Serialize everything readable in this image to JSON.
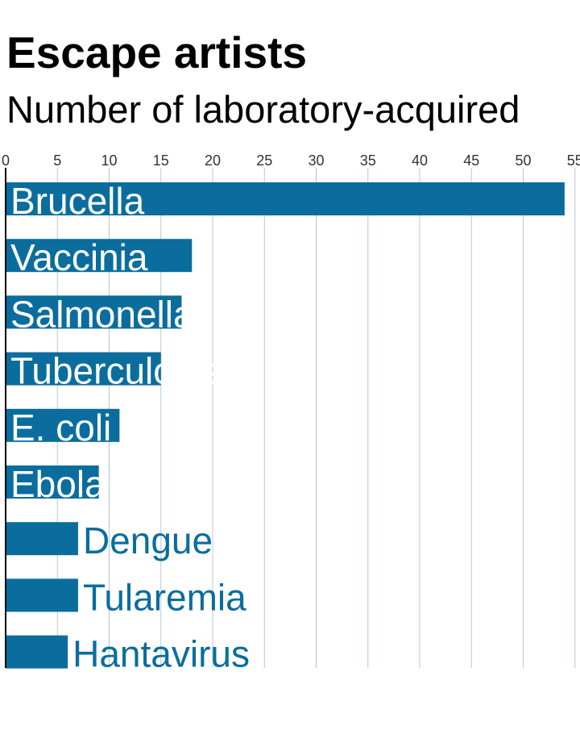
{
  "title": "Escape artists",
  "subtitle": "Number of laboratory-acquired",
  "colors": {
    "bar": "#0A6D9E",
    "grid": "#B8C8CC",
    "axis": "#000000",
    "tick_label": "#333333",
    "label_inside": "#ffffff",
    "label_outside": "#0A6D9E"
  },
  "chart_data": {
    "type": "bar",
    "orientation": "horizontal",
    "categories": [
      "Brucella",
      "Vaccinia",
      "Salmonella",
      "Tuberculosis",
      "E. coli",
      "Ebola",
      "Dengue",
      "Tularemia",
      "Hantavirus"
    ],
    "values": [
      54,
      18,
      17,
      15,
      11,
      9,
      7,
      7,
      6
    ],
    "xticks": [
      "0",
      "5",
      "10",
      "15",
      "20",
      "25",
      "30",
      "35",
      "40",
      "45",
      "50",
      "55"
    ],
    "xlim": [
      0,
      55
    ],
    "grid": true,
    "legend": "none"
  }
}
